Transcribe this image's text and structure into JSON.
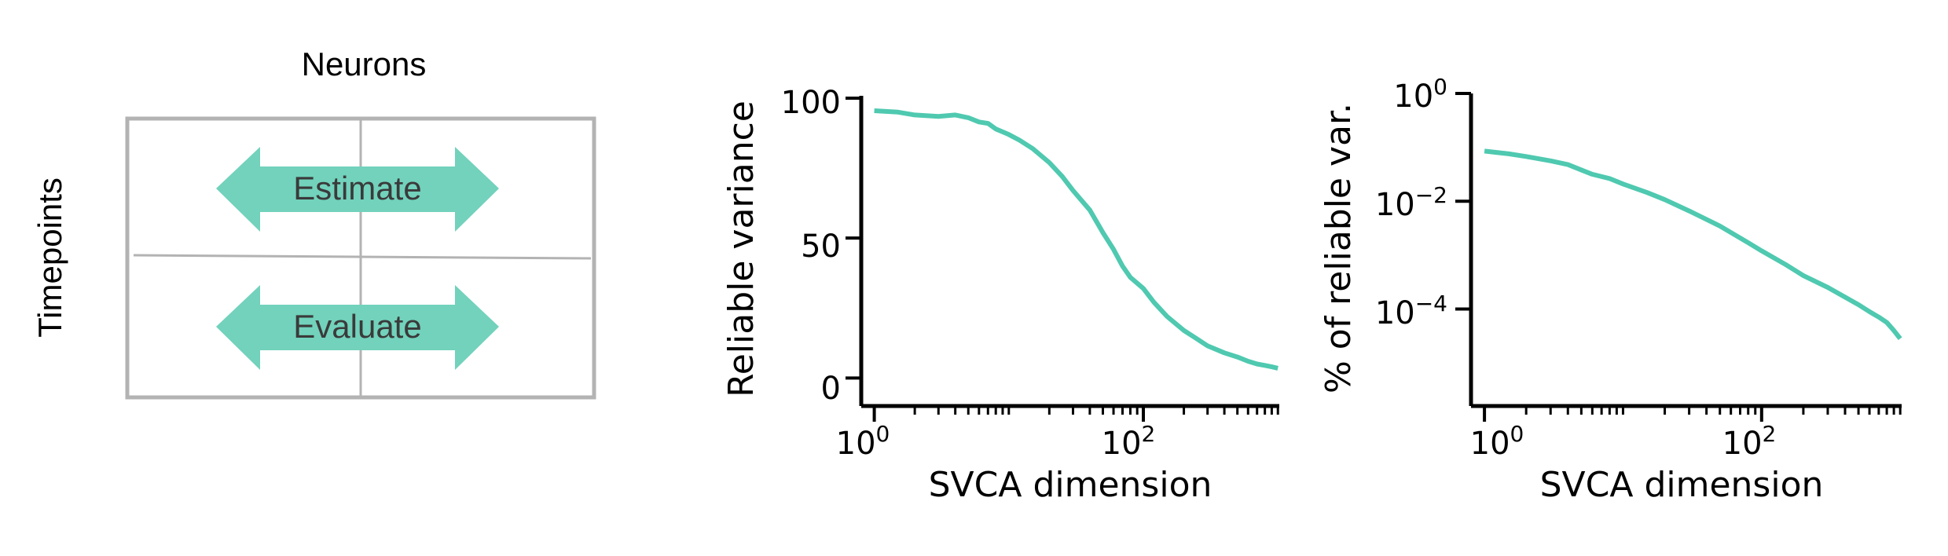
{
  "colors": {
    "accent": "#4fc9b0",
    "arrow_fill": "#72d2bc",
    "arrow_text": "#3a3a3a",
    "frame": "#b3b3b3",
    "axis": "#000000"
  },
  "diagram": {
    "top_label": "Neurons",
    "side_label": "Timepoints",
    "arrows": [
      {
        "label": "Estimate"
      },
      {
        "label": "Evaluate"
      }
    ]
  },
  "chart_data": [
    {
      "type": "line",
      "xscale": "log",
      "xlim": [
        0.8,
        1024
      ],
      "ylim": [
        -10,
        100
      ],
      "xlabel": "SVCA dimension",
      "ylabel": "Reliable variance",
      "x_ticks": [
        {
          "value": 1,
          "label_base": "10",
          "label_exp": "0"
        },
        {
          "value": 100,
          "label_base": "10",
          "label_exp": "2"
        }
      ],
      "y_ticks": [
        {
          "value": 0,
          "label": "0"
        },
        {
          "value": 50,
          "label": "50"
        },
        {
          "value": 100,
          "label": "100"
        }
      ],
      "grid": false,
      "series": [
        {
          "x": [
            1,
            1.5,
            2,
            3,
            4,
            5,
            6,
            7,
            8,
            10,
            12,
            15,
            20,
            25,
            30,
            40,
            50,
            60,
            70,
            80,
            100,
            120,
            150,
            200,
            250,
            300,
            400,
            500,
            600,
            700,
            800,
            900,
            1000
          ],
          "y": [
            95.5,
            95,
            94,
            93.5,
            94,
            93,
            91.5,
            91,
            89,
            87,
            85,
            82,
            77,
            72,
            67,
            60,
            52,
            46,
            40,
            36,
            32,
            27,
            22,
            17,
            14,
            11.5,
            9,
            7.5,
            6,
            5,
            4.5,
            4,
            3.5
          ]
        }
      ]
    },
    {
      "type": "line",
      "xscale": "log",
      "yscale": "log",
      "xlim": [
        0.8,
        1024
      ],
      "ylim_exp": [
        -5.8,
        0
      ],
      "xlabel": "SVCA dimension",
      "ylabel": "% of reliable var.",
      "x_ticks": [
        {
          "value": 1,
          "label_base": "10",
          "label_exp": "0"
        },
        {
          "value": 100,
          "label_base": "10",
          "label_exp": "2"
        }
      ],
      "y_ticks": [
        {
          "value_exp": 0,
          "label_base": "10",
          "label_exp": "0"
        },
        {
          "value_exp": -2,
          "label_base": "10",
          "label_exp": "−2"
        },
        {
          "value_exp": -4,
          "label_base": "10",
          "label_exp": "−4"
        }
      ],
      "grid": false,
      "series": [
        {
          "x": [
            1,
            1.5,
            2,
            3,
            4,
            5,
            6,
            8,
            10,
            15,
            20,
            30,
            50,
            80,
            100,
            150,
            200,
            300,
            400,
            500,
            600,
            700,
            800,
            900,
            1000
          ],
          "y_exp": [
            -1.07,
            -1.12,
            -1.17,
            -1.25,
            -1.32,
            -1.42,
            -1.5,
            -1.58,
            -1.68,
            -1.84,
            -1.97,
            -2.18,
            -2.46,
            -2.77,
            -2.92,
            -3.18,
            -3.38,
            -3.6,
            -3.78,
            -3.92,
            -4.05,
            -4.15,
            -4.25,
            -4.4,
            -4.55
          ]
        }
      ]
    }
  ]
}
